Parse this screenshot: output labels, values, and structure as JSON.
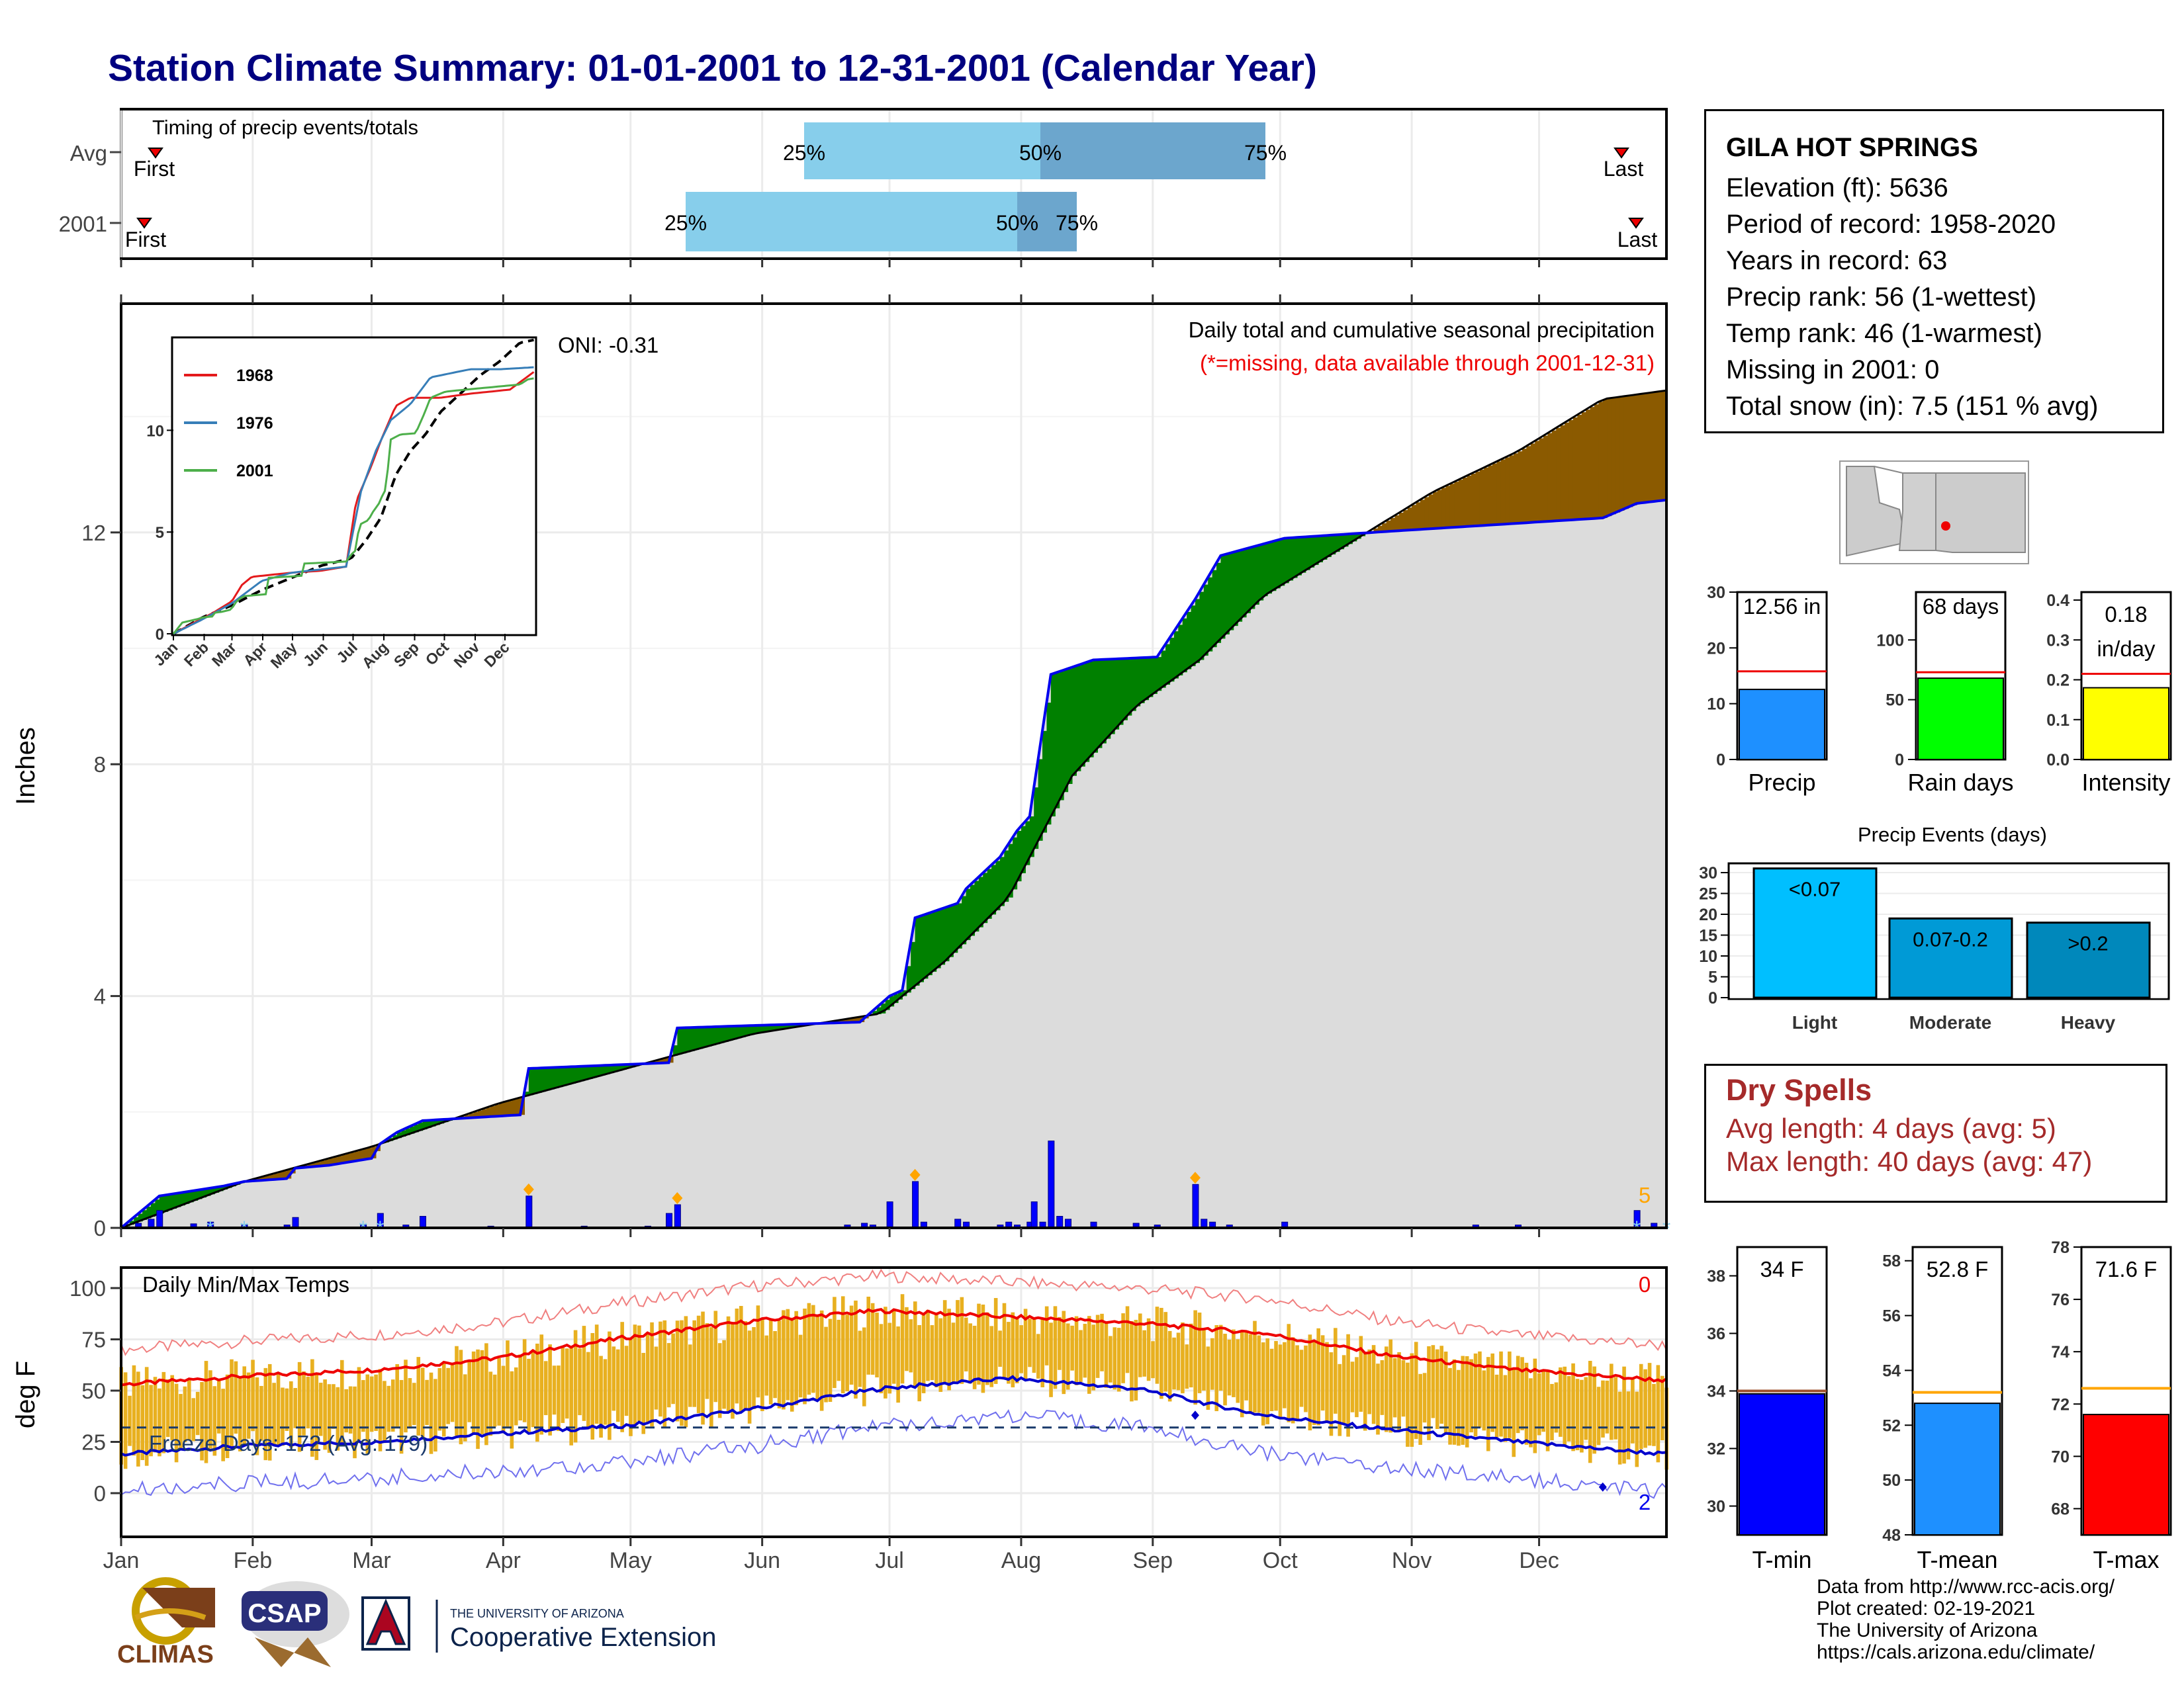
{
  "title": "Station Climate Summary: 01-01-2001 to 12-31-2001 (Calendar Year)",
  "timing": {
    "title": "Timing of precip events/totals",
    "rows": [
      {
        "label": "Avg",
        "first": "First",
        "last": "Last",
        "p25": "25%",
        "p50": "50%",
        "p75": "75%"
      },
      {
        "label": "2001",
        "first": "First",
        "last": "Last",
        "p25": "25%",
        "p50": "50%",
        "p75": "75%"
      }
    ]
  },
  "precip_panel": {
    "ylabel": "Inches",
    "oni": "ONI: -0.31",
    "title": "Daily total and cumulative seasonal precipitation",
    "note": "(*=missing, data available through 2001-12-31)",
    "corner_count": "5",
    "ticks": [
      "0",
      "4",
      "8",
      "12"
    ]
  },
  "inset": {
    "legend": [
      "1968",
      "1976",
      "2001"
    ],
    "colors": [
      "#e41a1c",
      "#377eb8",
      "#4daf4a"
    ],
    "yticks": [
      "0",
      "5",
      "10"
    ],
    "xticks": [
      "Jan",
      "Feb",
      "Mar",
      "Apr",
      "May",
      "Jun",
      "Jul",
      "Aug",
      "Sep",
      "Oct",
      "Nov",
      "Dec"
    ]
  },
  "temp_panel": {
    "ylabel": "deg F",
    "title": "Daily Min/Max Temps",
    "freeze": "Freeze Days: 172 (Avg: 179)",
    "corner_top": "0",
    "corner_bottom": "2",
    "ticks": [
      "0",
      "25",
      "50",
      "75",
      "100"
    ]
  },
  "months": [
    "Jan",
    "Feb",
    "Mar",
    "Apr",
    "May",
    "Jun",
    "Jul",
    "Aug",
    "Sep",
    "Oct",
    "Nov",
    "Dec"
  ],
  "station": {
    "name": "GILA HOT SPRINGS",
    "lines": [
      "Elevation (ft): 5636",
      "Period of record: 1958-2020",
      "Years in record: 63",
      "Precip rank: 56 (1-wettest)",
      "Temp rank: 46 (1-warmest)",
      "Missing in 2001: 0",
      "Total snow (in): 7.5 (151 % avg)"
    ]
  },
  "mini_bars": [
    {
      "label": "Precip",
      "value_text": "12.56 in",
      "value": 12.56,
      "avg": 15.8,
      "ymax": 30,
      "ticks": [
        "0",
        "10",
        "20",
        "30"
      ],
      "color": "#1e90ff"
    },
    {
      "label": "Rain days",
      "value_text": "68 days",
      "value": 68,
      "avg": 73,
      "ymax": 140,
      "ticks": [
        "0",
        "50",
        "100"
      ],
      "color": "#00ff00"
    },
    {
      "label": "Intensity",
      "value_text": "0.18",
      "value_text2": "in/day",
      "value": 0.18,
      "avg": 0.215,
      "ymax": 0.42,
      "ticks": [
        "0.0",
        "0.1",
        "0.2",
        "0.3",
        "0.4"
      ],
      "color": "#ffff00"
    }
  ],
  "events": {
    "title": "Precip Events (days)",
    "ticks": [
      "0",
      "5",
      "10",
      "15",
      "20",
      "25",
      "30"
    ],
    "bars": [
      {
        "label": "Light",
        "value_text": "<0.07",
        "value": 31,
        "color": "#00bfff"
      },
      {
        "label": "Moderate",
        "value_text": "0.07-0.2",
        "value": 19,
        "color": "#009ad6"
      },
      {
        "label": "Heavy",
        "value_text": ">0.2",
        "value": 18,
        "color": "#0088bb"
      }
    ]
  },
  "dry_spells": {
    "title": "Dry Spells",
    "avg": "Avg length: 4 days (avg: 5)",
    "max": "Max length: 40 days (avg: 47)"
  },
  "temp_bars": [
    {
      "label": "T-min",
      "value_text": "34 F",
      "value": 33.9,
      "avg": 34.0,
      "ymin": 29,
      "ymax": 39,
      "ticks": [
        "30",
        "32",
        "34",
        "36",
        "38"
      ],
      "color": "#0000ff",
      "avgcolor": "#a0522d"
    },
    {
      "label": "T-mean",
      "value_text": "52.8 F",
      "value": 52.8,
      "avg": 53.2,
      "ymin": 48,
      "ymax": 58.5,
      "ticks": [
        "48",
        "50",
        "52",
        "54",
        "56",
        "58"
      ],
      "color": "#1e90ff",
      "avgcolor": "#ffa500"
    },
    {
      "label": "T-max",
      "value_text": "71.6 F",
      "value": 71.6,
      "avg": 72.6,
      "ymin": 67,
      "ymax": 78,
      "ticks": [
        "68",
        "70",
        "72",
        "74",
        "76",
        "78"
      ],
      "color": "#ff0000",
      "avgcolor": "#ffa500"
    }
  ],
  "logos": {
    "climas": "CLIMAS",
    "csap": "CSAP",
    "ua_small": "THE UNIVERSITY OF ARIZONA",
    "ua_big": "Cooperative Extension"
  },
  "footer": [
    "Data from http://www.rcc-acis.org/",
    "Plot created: 02-19-2021",
    "The University of Arizona",
    "https://cals.arizona.edu/climate/"
  ],
  "chart_data": {
    "type": "area",
    "title": "Daily total and cumulative seasonal precipitation",
    "ylabel": "Inches",
    "ylim": [
      0,
      15.9
    ],
    "x_unit": "day of year 2001",
    "series": [
      {
        "name": "2001",
        "points": [
          [
            1,
            0
          ],
          [
            10,
            0.55
          ],
          [
            25,
            0.72
          ],
          [
            30,
            0.8
          ],
          [
            40,
            0.85
          ],
          [
            42,
            1.03
          ],
          [
            50,
            1.08
          ],
          [
            60,
            1.2
          ],
          [
            62,
            1.45
          ],
          [
            66,
            1.65
          ],
          [
            72,
            1.85
          ],
          [
            95,
            1.95
          ],
          [
            97,
            2.75
          ],
          [
            130,
            2.85
          ],
          [
            132,
            3.45
          ],
          [
            175,
            3.55
          ],
          [
            182,
            4.0
          ],
          [
            185,
            4.1
          ],
          [
            188,
            5.35
          ],
          [
            198,
            5.6
          ],
          [
            200,
            5.85
          ],
          [
            208,
            6.4
          ],
          [
            212,
            6.85
          ],
          [
            215,
            7.1
          ],
          [
            216,
            7.6
          ],
          [
            220,
            9.55
          ],
          [
            230,
            9.8
          ],
          [
            245,
            9.85
          ],
          [
            254,
            10.85
          ],
          [
            260,
            11.6
          ],
          [
            275,
            11.9
          ],
          [
            300,
            12.02
          ],
          [
            350,
            12.25
          ],
          [
            358,
            12.5
          ],
          [
            365,
            12.56
          ]
        ]
      },
      {
        "name": "Avg",
        "points": [
          [
            1,
            0
          ],
          [
            30,
            0.8
          ],
          [
            60,
            1.4
          ],
          [
            90,
            2.15
          ],
          [
            120,
            2.75
          ],
          [
            150,
            3.35
          ],
          [
            180,
            3.7
          ],
          [
            195,
            4.6
          ],
          [
            210,
            5.7
          ],
          [
            225,
            7.8
          ],
          [
            240,
            9.0
          ],
          [
            255,
            9.8
          ],
          [
            270,
            10.9
          ],
          [
            290,
            11.8
          ],
          [
            310,
            12.7
          ],
          [
            330,
            13.4
          ],
          [
            350,
            14.3
          ],
          [
            365,
            14.45
          ]
        ]
      }
    ],
    "daily_bars": [
      [
        5,
        0.08
      ],
      [
        8,
        0.15
      ],
      [
        10,
        0.3
      ],
      [
        18,
        0.07
      ],
      [
        22,
        0.1
      ],
      [
        30,
        0.05
      ],
      [
        40,
        0.05
      ],
      [
        42,
        0.18
      ],
      [
        58,
        0.05
      ],
      [
        62,
        0.25
      ],
      [
        68,
        0.05
      ],
      [
        72,
        0.2
      ],
      [
        88,
        0.03
      ],
      [
        97,
        0.55
      ],
      [
        110,
        0.03
      ],
      [
        125,
        0.03
      ],
      [
        130,
        0.25
      ],
      [
        132,
        0.4
      ],
      [
        172,
        0.05
      ],
      [
        176,
        0.08
      ],
      [
        178,
        0.05
      ],
      [
        182,
        0.45
      ],
      [
        188,
        0.8
      ],
      [
        190,
        0.1
      ],
      [
        198,
        0.15
      ],
      [
        200,
        0.1
      ],
      [
        208,
        0.05
      ],
      [
        210,
        0.1
      ],
      [
        212,
        0.05
      ],
      [
        215,
        0.1
      ],
      [
        216,
        0.45
      ],
      [
        218,
        0.1
      ],
      [
        220,
        1.5
      ],
      [
        222,
        0.2
      ],
      [
        224,
        0.15
      ],
      [
        230,
        0.1
      ],
      [
        240,
        0.08
      ],
      [
        245,
        0.05
      ],
      [
        254,
        0.75
      ],
      [
        256,
        0.15
      ],
      [
        258,
        0.1
      ],
      [
        262,
        0.05
      ],
      [
        275,
        0.1
      ],
      [
        320,
        0.05
      ],
      [
        330,
        0.05
      ],
      [
        358,
        0.3
      ],
      [
        362,
        0.08
      ]
    ],
    "temp": {
      "title": "Daily Min/Max Temps",
      "ylabel": "deg F",
      "ylim": [
        -18,
        108
      ],
      "avg_max": [
        [
          1,
          53
        ],
        [
          30,
          57
        ],
        [
          60,
          60
        ],
        [
          90,
          66
        ],
        [
          120,
          76
        ],
        [
          150,
          84
        ],
        [
          180,
          89
        ],
        [
          210,
          86
        ],
        [
          240,
          83
        ],
        [
          270,
          78
        ],
        [
          300,
          67
        ],
        [
          330,
          60
        ],
        [
          365,
          55
        ]
      ],
      "avg_min": [
        [
          1,
          19
        ],
        [
          30,
          23
        ],
        [
          60,
          25
        ],
        [
          90,
          29
        ],
        [
          120,
          33
        ],
        [
          150,
          41
        ],
        [
          180,
          51
        ],
        [
          210,
          56
        ],
        [
          240,
          51
        ],
        [
          270,
          38
        ],
        [
          300,
          31
        ],
        [
          330,
          25
        ],
        [
          365,
          19
        ]
      ],
      "freeze_line": 32
    }
  }
}
